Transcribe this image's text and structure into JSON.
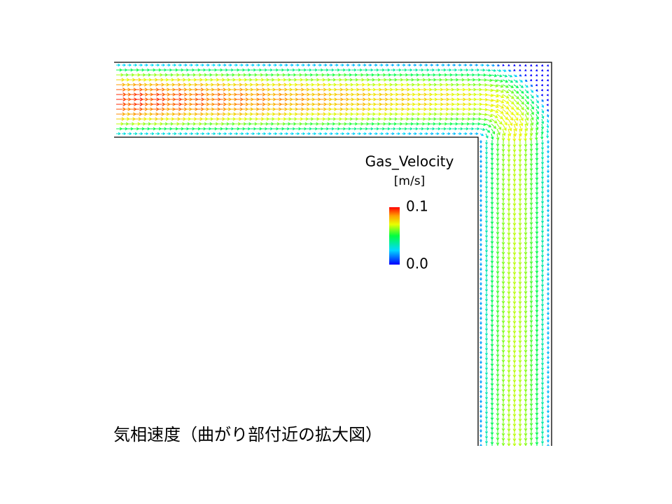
{
  "legend": {
    "title": "Gas_Velocity",
    "unit": "[m/s]",
    "max_label": "0.1",
    "min_label": "0.0"
  },
  "caption": "気相速度（曲がり部付近の拡大図）"
}
